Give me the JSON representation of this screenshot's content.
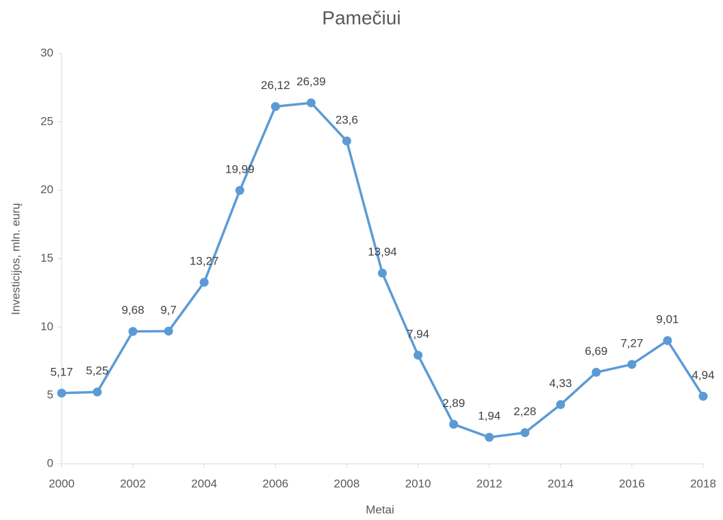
{
  "chart_data": {
    "type": "line",
    "title": "Pamečiui",
    "x_label": "Metai",
    "y_label": "Investicijos, mln. eurų",
    "x": [
      2000,
      2001,
      2002,
      2003,
      2004,
      2005,
      2006,
      2007,
      2008,
      2009,
      2010,
      2011,
      2012,
      2013,
      2014,
      2015,
      2016,
      2017,
      2018
    ],
    "series": [
      {
        "name": "Investicijos",
        "color": "#5b9bd5",
        "values": [
          5.17,
          5.25,
          9.68,
          9.7,
          13.27,
          19.99,
          26.12,
          26.39,
          23.6,
          13.94,
          7.94,
          2.89,
          1.94,
          2.28,
          4.33,
          6.69,
          7.27,
          9.01,
          4.94
        ],
        "value_labels": [
          "5,17",
          "5,25",
          "9,68",
          "9,7",
          "13,27",
          "19,99",
          "26,12",
          "26,39",
          "23,6",
          "13,94",
          "7,94",
          "2,89",
          "1,94",
          "2,28",
          "4,33",
          "6,69",
          "7,27",
          "9,01",
          "4,94"
        ]
      }
    ],
    "xlim": [
      2000,
      2018
    ],
    "xticks": [
      2000,
      2002,
      2004,
      2006,
      2008,
      2010,
      2012,
      2014,
      2016,
      2018
    ],
    "ylim": [
      0,
      30
    ],
    "yticks": [
      0,
      5,
      10,
      15,
      20,
      25,
      30
    ],
    "grid": false
  }
}
